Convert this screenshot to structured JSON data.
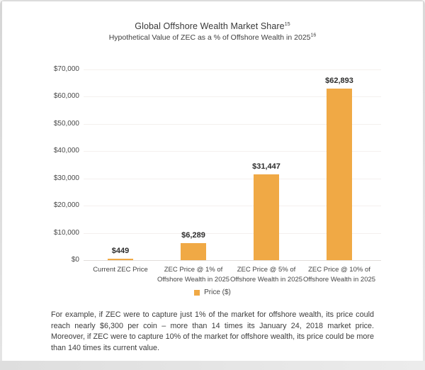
{
  "chart_data": {
    "type": "bar",
    "title": "Global Offshore Wealth Market Share",
    "title_superscript": "15",
    "subtitle": "Hypothetical Value of ZEC as a % of Offshore Wealth in 2025",
    "subtitle_superscript": "16",
    "categories": [
      [
        "Current ZEC Price"
      ],
      [
        "ZEC Price @ 1% of",
        "Offshore Wealth in 2025"
      ],
      [
        "ZEC Price @ 5% of",
        "Offshore Wealth in 2025"
      ],
      [
        "ZEC Price @ 10% of",
        "Offshore Wealth in 2025"
      ]
    ],
    "values": [
      449,
      6289,
      31447,
      62893
    ],
    "value_labels": [
      "$449",
      "$6,289",
      "$31,447",
      "$62,893"
    ],
    "ylim": [
      0,
      70000
    ],
    "ytick_step": 10000,
    "ytick_labels": [
      "$0",
      "$10,000",
      "$20,000",
      "$30,000",
      "$40,000",
      "$50,000",
      "$60,000",
      "$70,000"
    ],
    "grid": true,
    "bar_color": "#F0A945",
    "legend": {
      "label": "Price ($)",
      "color": "#F0A945",
      "position": "bottom"
    }
  },
  "footnote": {
    "text": "For example, if ZEC were to capture just 1% of the market for offshore wealth, its price could reach nearly $6,300 per coin – more than 14 times its January 24, 2018 market price. Moreover, if ZEC were to capture 10% of the market for offshore wealth, its price could be more than 140 times its current value."
  }
}
